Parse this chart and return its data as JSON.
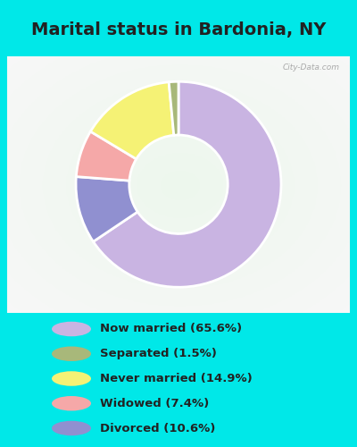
{
  "title": "Marital status in Bardonia, NY",
  "slices": [
    65.6,
    1.5,
    14.9,
    7.4,
    10.6
  ],
  "labels": [
    "Now married (65.6%)",
    "Separated (1.5%)",
    "Never married (14.9%)",
    "Widowed (7.4%)",
    "Divorced (10.6%)"
  ],
  "colors": [
    "#c9b4e2",
    "#a8b87a",
    "#f5f275",
    "#f5a8a8",
    "#9090d0"
  ],
  "bg_cyan": "#00e8e8",
  "bg_chart_color1": "#d0ecd0",
  "bg_chart_color2": "#e8f5e8",
  "title_fontsize": 14,
  "watermark": "City-Data.com",
  "title_color": "#222222",
  "label_color": "#222222"
}
